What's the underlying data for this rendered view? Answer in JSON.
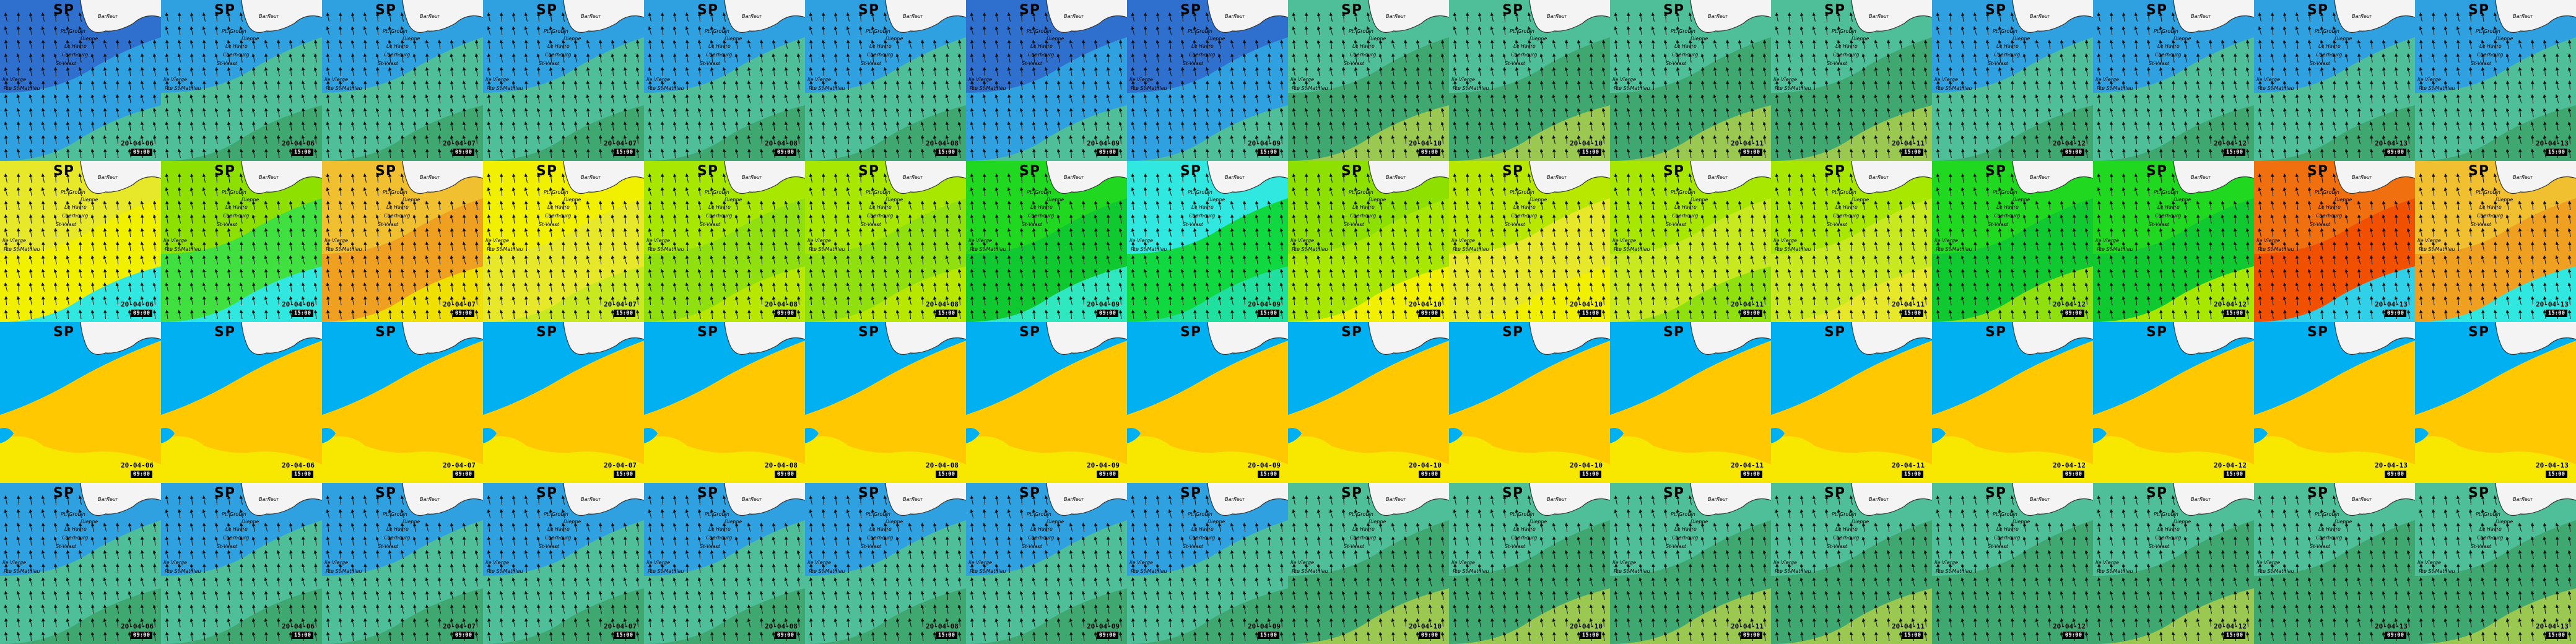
{
  "header_label": "SP",
  "places": {
    "barfleur": "Barfleur",
    "pt_grouin": "Pt. Grouin",
    "dieppe": "Dieppe",
    "le_havre": "Le Havre",
    "cherbourg": "Cherbourg",
    "st_vaast": "St-Vaast",
    "ile_vierge": "Ile Vierge",
    "pte_st_mathieu": "Pte St-Mathieu"
  },
  "frames": [
    {
      "date": "20-04-06",
      "time": "09:00"
    },
    {
      "date": "20-04-06",
      "time": "15:00"
    },
    {
      "date": "20-04-07",
      "time": "09:00"
    },
    {
      "date": "20-04-07",
      "time": "15:00"
    },
    {
      "date": "20-04-08",
      "time": "09:00"
    },
    {
      "date": "20-04-08",
      "time": "15:00"
    },
    {
      "date": "20-04-09",
      "time": "09:00"
    },
    {
      "date": "20-04-09",
      "time": "15:00"
    },
    {
      "date": "20-04-10",
      "time": "09:00"
    },
    {
      "date": "20-04-10",
      "time": "15:00"
    },
    {
      "date": "20-04-11",
      "time": "09:00"
    },
    {
      "date": "20-04-11",
      "time": "15:00"
    },
    {
      "date": "20-04-12",
      "time": "09:00"
    },
    {
      "date": "20-04-12",
      "time": "15:00"
    },
    {
      "date": "20-04-13",
      "time": "09:00"
    },
    {
      "date": "20-04-13",
      "time": "15:00"
    }
  ],
  "rows": [
    {
      "name": "wave-height",
      "arrows": true,
      "labels": true,
      "palettes": [
        [
          "#2f6fce",
          "#2fa0e0",
          "#4fbf9a"
        ],
        [
          "#2fa0e0",
          "#4fbf9a",
          "#3fa870"
        ],
        [
          "#2fa0e0",
          "#4fbf9a",
          "#3fa870"
        ],
        [
          "#2fa0e0",
          "#4fbf9a",
          "#3fa870"
        ],
        [
          "#2fa0e0",
          "#4fbf9a",
          "#3fa870"
        ],
        [
          "#2fa0e0",
          "#4fbf9a",
          "#3fa870"
        ],
        [
          "#2f6fce",
          "#2fa0e0",
          "#4fbf9a"
        ],
        [
          "#2f6fce",
          "#2fa0e0",
          "#4fbf9a"
        ],
        [
          "#4fbf9a",
          "#3fa870",
          "#9ac850"
        ],
        [
          "#4fbf9a",
          "#3fa870",
          "#9ac850"
        ],
        [
          "#4fbf9a",
          "#3fa870",
          "#9ac850"
        ],
        [
          "#4fbf9a",
          "#3fa870",
          "#9ac850"
        ],
        [
          "#2fa0e0",
          "#4fbf9a",
          "#3fa870"
        ],
        [
          "#2fa0e0",
          "#4fbf9a",
          "#3fa870"
        ],
        [
          "#2fa0e0",
          "#4fbf9a",
          "#3fa870"
        ],
        [
          "#2fa0e0",
          "#4fbf9a",
          "#3fa870"
        ]
      ]
    },
    {
      "name": "wave-period",
      "arrows": true,
      "labels": true,
      "palettes": [
        [
          "#e8e82a",
          "#f0f000",
          "#30e8e0"
        ],
        [
          "#8ee000",
          "#40e040",
          "#30e8e0"
        ],
        [
          "#f0c030",
          "#f0a020",
          "#f0e000"
        ],
        [
          "#f0f000",
          "#e8e82a",
          "#c8e820"
        ],
        [
          "#a8e800",
          "#90e010",
          "#b8e800"
        ],
        [
          "#a8e800",
          "#90e010",
          "#b8e800"
        ],
        [
          "#20d820",
          "#10c830",
          "#30e8c0"
        ],
        [
          "#30e8e0",
          "#10d840",
          "#20e0a0"
        ],
        [
          "#8ee000",
          "#a8e800",
          "#f0f000"
        ],
        [
          "#b8e800",
          "#e8e82a",
          "#f0f000"
        ],
        [
          "#a8e800",
          "#c8e820",
          "#90e010"
        ],
        [
          "#a8e800",
          "#c8e820",
          "#e8e82a"
        ],
        [
          "#20d820",
          "#10c830",
          "#90e010"
        ],
        [
          "#20d820",
          "#10c830",
          "#a8e800"
        ],
        [
          "#f07010",
          "#f05000",
          "#30d0e8"
        ],
        [
          "#f0c030",
          "#f0a020",
          "#30e8e0"
        ]
      ]
    },
    {
      "name": "water-level",
      "arrows": false,
      "labels": false,
      "palettes": [
        [
          "#00b0f0",
          "#ffc800",
          "#f8e800"
        ],
        [
          "#00b0f0",
          "#ffc800",
          "#f8e800"
        ],
        [
          "#00b0f0",
          "#ffc800",
          "#f8e800"
        ],
        [
          "#00b0f0",
          "#ffc800",
          "#f8e800"
        ],
        [
          "#00b0f0",
          "#ffc800",
          "#f8e800"
        ],
        [
          "#00b0f0",
          "#ffc800",
          "#f8e800"
        ],
        [
          "#00b0f0",
          "#ffc800",
          "#f8e800"
        ],
        [
          "#00b0f0",
          "#ffc800",
          "#f8e800"
        ],
        [
          "#00b0f0",
          "#ffc800",
          "#f8e800"
        ],
        [
          "#00b0f0",
          "#ffc800",
          "#f8e800"
        ],
        [
          "#00b0f0",
          "#ffc800",
          "#f8e800"
        ],
        [
          "#00b0f0",
          "#ffc800",
          "#f8e800"
        ],
        [
          "#00b0f0",
          "#ffc800",
          "#f8e800"
        ],
        [
          "#00b0f0",
          "#ffc800",
          "#f8e800"
        ],
        [
          "#00b0f0",
          "#ffc800",
          "#f8e800"
        ],
        [
          "#00b0f0",
          "#ffc800",
          "#f8e800"
        ]
      ]
    },
    {
      "name": "swell-height",
      "arrows": true,
      "labels": true,
      "palettes": [
        [
          "#2fa0e0",
          "#4fbf9a",
          "#3fa870"
        ],
        [
          "#2fa0e0",
          "#4fbf9a",
          "#3fa870"
        ],
        [
          "#2fa0e0",
          "#4fbf9a",
          "#3fa870"
        ],
        [
          "#2fa0e0",
          "#4fbf9a",
          "#3fa870"
        ],
        [
          "#2fa0e0",
          "#4fbf9a",
          "#3fa870"
        ],
        [
          "#2fa0e0",
          "#4fbf9a",
          "#3fa870"
        ],
        [
          "#2fa0e0",
          "#4fbf9a",
          "#3fa870"
        ],
        [
          "#2fa0e0",
          "#4fbf9a",
          "#3fa870"
        ],
        [
          "#4fbf9a",
          "#3fa870",
          "#9ac850"
        ],
        [
          "#4fbf9a",
          "#3fa870",
          "#9ac850"
        ],
        [
          "#4fbf9a",
          "#3fa870",
          "#9ac850"
        ],
        [
          "#4fbf9a",
          "#3fa870",
          "#9ac850"
        ],
        [
          "#4fbf9a",
          "#3fa870",
          "#3fa870"
        ],
        [
          "#4fbf9a",
          "#3fa870",
          "#9ac850"
        ],
        [
          "#4fbf9a",
          "#3fa870",
          "#3fa870"
        ],
        [
          "#4fbf9a",
          "#3fa870",
          "#9ac850"
        ]
      ]
    }
  ]
}
